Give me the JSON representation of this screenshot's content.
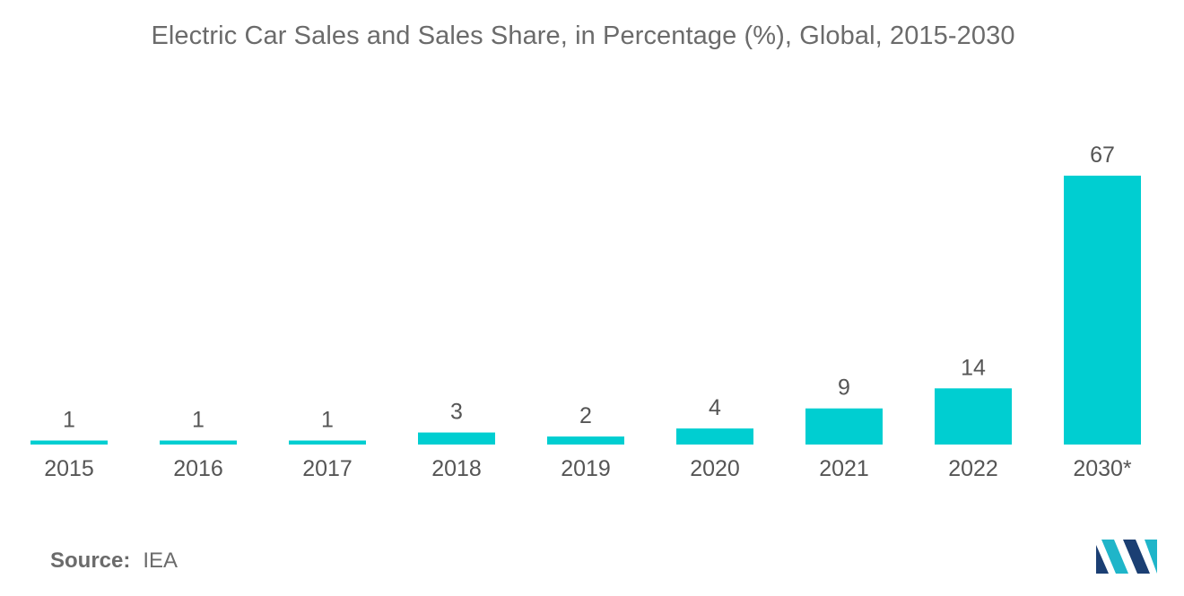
{
  "chart_data": {
    "type": "bar",
    "title": "Electric Car Sales and Sales Share, in Percentage (%), Global, 2015-2030",
    "categories": [
      "2015",
      "2016",
      "2017",
      "2018",
      "2019",
      "2020",
      "2021",
      "2022",
      "2030*"
    ],
    "values": [
      1,
      1,
      1,
      3,
      2,
      4,
      9,
      14,
      67
    ],
    "xlabel": "",
    "ylabel": "",
    "ylim": [
      0,
      67
    ],
    "grid": false,
    "legend": "none",
    "bar_color": "#00CED1"
  },
  "source": {
    "label": "Source:",
    "value": "IEA"
  },
  "logo": {
    "icon": "mordor-intelligence-logo-icon",
    "colors": [
      "#1b3f73",
      "#1fb5c9"
    ]
  }
}
